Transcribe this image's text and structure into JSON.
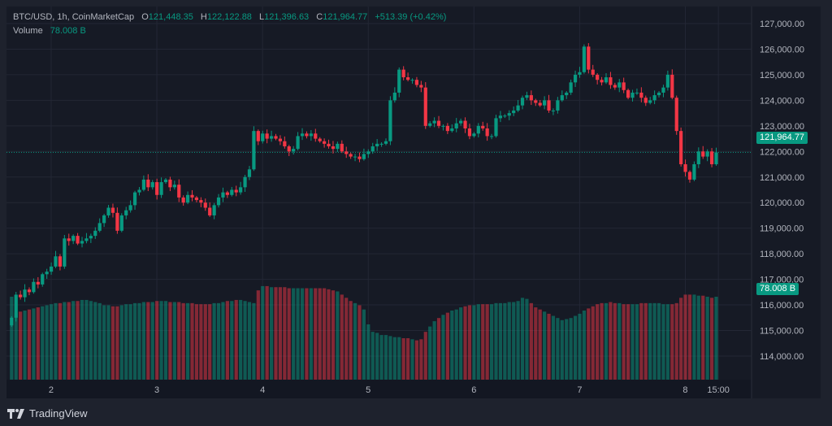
{
  "legend": {
    "symbol": "BTC/USD, 1h, CoinMarketCap",
    "open_label": "O",
    "open": "121,448.35",
    "high_label": "H",
    "high": "122,122.88",
    "low_label": "L",
    "low": "121,396.63",
    "close_label": "C",
    "close": "121,964.77",
    "change": "+513.39 (+0.42%)",
    "volume_label": "Volume",
    "volume": "78.008 B"
  },
  "price_tag": "121,964.77",
  "volume_tag": "78.008 B",
  "brand": "TradingView",
  "colors": {
    "up": "#089981",
    "down": "#f23645",
    "background": "#161a25",
    "grid": "#232735"
  },
  "chart_data": {
    "type": "candlestick",
    "title": "BTC/USD, 1h, CoinMarketCap",
    "ylim": [
      113300,
      127500
    ],
    "y_ticks": [
      "127,000.00",
      "126,000.00",
      "125,000.00",
      "124,000.00",
      "123,000.00",
      "122,000.00",
      "121,000.00",
      "120,000.00",
      "119,000.00",
      "118,000.00",
      "117,000.00",
      "116,000.00",
      "115,000.00",
      "114,000.00"
    ],
    "y_tick_values": [
      127000,
      126000,
      125000,
      124000,
      123000,
      122000,
      121000,
      120000,
      119000,
      118000,
      117000,
      116000,
      115000,
      114000
    ],
    "x_ticks": [
      "2",
      "3",
      "4",
      "5",
      "6",
      "7",
      "8",
      "15:00"
    ],
    "x_tick_hours": [
      9,
      33,
      57,
      81,
      105,
      129,
      153,
      160.5
    ],
    "first_open": 115200,
    "closes": [
      115500,
      116400,
      116300,
      116600,
      116500,
      116900,
      116800,
      117200,
      117300,
      117500,
      117900,
      117500,
      118600,
      118500,
      118700,
      118400,
      118500,
      118600,
      118700,
      118900,
      119200,
      119500,
      119800,
      119600,
      118900,
      119500,
      119700,
      119900,
      120400,
      120500,
      120900,
      120600,
      120800,
      120300,
      120800,
      120900,
      120600,
      120700,
      120200,
      120000,
      120300,
      120200,
      120100,
      120000,
      119800,
      119500,
      119900,
      120200,
      120400,
      120300,
      120500,
      120400,
      120600,
      121000,
      121300,
      122800,
      122400,
      122700,
      122500,
      122600,
      122500,
      122400,
      122200,
      122000,
      122100,
      122600,
      122700,
      122600,
      122700,
      122500,
      122400,
      122300,
      122200,
      122100,
      122300,
      122000,
      121900,
      121800,
      121800,
      121700,
      121900,
      122000,
      122200,
      122300,
      122300,
      122400,
      124000,
      124300,
      125200,
      124900,
      124800,
      124800,
      124600,
      124500,
      123000,
      123100,
      123200,
      123000,
      123000,
      122800,
      122900,
      123100,
      123200,
      122900,
      122600,
      122700,
      123000,
      122900,
      122600,
      122600,
      123300,
      123400,
      123400,
      123500,
      123600,
      123800,
      124100,
      124200,
      124000,
      123900,
      123800,
      124000,
      123600,
      123600,
      124000,
      124200,
      124300,
      124700,
      125000,
      125100,
      126100,
      125200,
      125000,
      124800,
      124700,
      124900,
      124600,
      124500,
      124700,
      124400,
      124100,
      124300,
      124300,
      124100,
      123900,
      124000,
      124200,
      124300,
      124500,
      125000,
      124100,
      122800,
      121500,
      121200,
      120900,
      121500,
      122000,
      121800,
      122000,
      121500,
      121964.77
    ],
    "volume_unit": "B",
    "volumes": [
      78,
      63,
      64,
      65,
      66,
      67,
      68,
      69,
      70,
      71,
      72,
      72,
      73,
      73,
      74,
      74,
      75,
      75,
      74,
      73,
      72,
      70,
      70,
      69,
      69,
      70,
      71,
      71,
      72,
      72,
      73,
      73,
      73,
      74,
      74,
      74,
      73,
      73,
      73,
      72,
      72,
      72,
      71,
      71,
      71,
      71,
      72,
      72,
      73,
      74,
      74,
      75,
      75,
      74,
      73,
      72,
      84,
      88,
      88,
      87,
      87,
      87,
      87,
      86,
      86,
      86,
      86,
      86,
      86,
      86,
      86,
      86,
      85,
      84,
      83,
      80,
      77,
      74,
      72,
      70,
      66,
      52,
      45,
      44,
      42,
      42,
      41,
      40,
      40,
      39,
      39,
      38,
      37,
      38,
      45,
      50,
      55,
      58,
      61,
      63,
      65,
      66,
      68,
      69,
      70,
      70,
      71,
      71,
      71,
      71,
      72,
      72,
      72,
      73,
      73,
      74,
      77,
      76,
      72,
      68,
      66,
      64,
      62,
      60,
      58,
      56,
      57,
      58,
      60,
      62,
      65,
      67,
      69,
      71,
      72,
      72,
      73,
      72,
      72,
      71,
      71,
      71,
      71,
      72,
      72,
      72,
      72,
      72,
      71,
      71,
      71,
      72,
      77,
      80,
      80,
      80,
      79,
      79,
      78,
      77,
      78.008
    ],
    "last_price": 121964.77
  }
}
